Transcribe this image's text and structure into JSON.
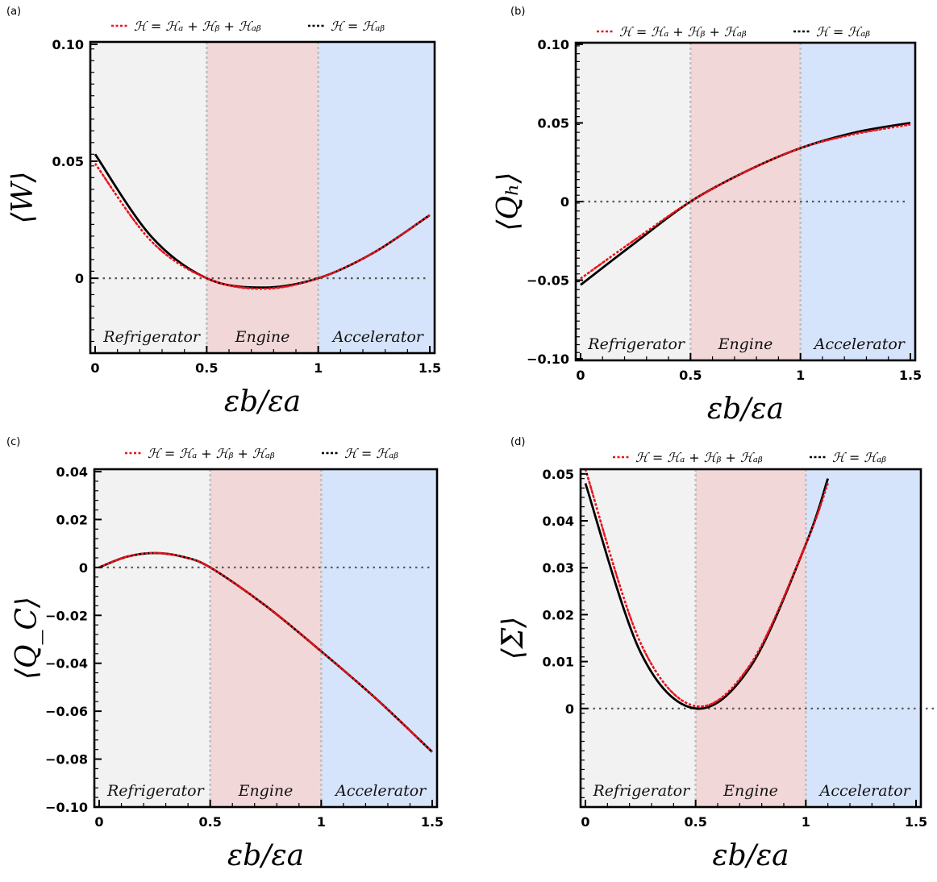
{
  "colors": {
    "refrigerator": "#f2f2f2",
    "engine": "#f2d7d9",
    "accelerator": "#d6e4fb",
    "full_hamiltonian": "#e8141c",
    "interaction_only": "#000000",
    "zero_line": "#555555",
    "boundary": "#bfbfbf"
  },
  "legend": {
    "full": "ℋ = ℋₐ + ℋᵦ + ℋₐᵦ",
    "interaction": "ℋ = ℋₐᵦ"
  },
  "regions": [
    {
      "name": "Refrigerator",
      "from": 0,
      "to": 0.5
    },
    {
      "name": "Engine",
      "from": 0.5,
      "to": 1.0
    },
    {
      "name": "Accelerator",
      "from": 1.0,
      "to": 1.5
    }
  ],
  "xlabel": "εb/εa",
  "chart_data": [
    {
      "type": "line",
      "panel": "(a)",
      "ylabel": "⟨W⟩",
      "xlim": [
        0,
        1.5
      ],
      "ylim": [
        -0.032,
        0.101
      ],
      "xticks": [
        {
          "v": 0,
          "t": "0"
        },
        {
          "v": 0.5,
          "t": "0.5"
        },
        {
          "v": 1,
          "t": "1"
        },
        {
          "v": 1.5,
          "t": "1.5"
        }
      ],
      "yticks": [
        {
          "v": 0,
          "t": "0"
        },
        {
          "v": 0.05,
          "t": "0.05"
        },
        {
          "v": 0.1,
          "t": "0.10"
        }
      ],
      "x": [
        0,
        0.25,
        0.5,
        0.75,
        1.0,
        1.25,
        1.5
      ],
      "series": [
        {
          "name": "full",
          "values": [
            0.049,
            0.016,
            0.0,
            -0.0045,
            0.0,
            0.011,
            0.027
          ]
        },
        {
          "name": "interaction",
          "values": [
            0.053,
            0.018,
            0.0,
            -0.004,
            0.0,
            0.011,
            0.027
          ]
        }
      ]
    },
    {
      "type": "line",
      "panel": "(b)",
      "ylabel": "⟨Qₕ⟩",
      "xlim": [
        0,
        1.5
      ],
      "ylim": [
        -0.101,
        0.101
      ],
      "xticks": [
        {
          "v": 0,
          "t": "0"
        },
        {
          "v": 0.5,
          "t": "0.5"
        },
        {
          "v": 1,
          "t": "1"
        },
        {
          "v": 1.5,
          "t": "1.5"
        }
      ],
      "yticks": [
        {
          "v": -0.1,
          "t": "−0.10"
        },
        {
          "v": -0.05,
          "t": "−0.05"
        },
        {
          "v": 0,
          "t": "0"
        },
        {
          "v": 0.05,
          "t": "0.05"
        },
        {
          "v": 0.1,
          "t": "0.10"
        }
      ],
      "x": [
        0,
        0.25,
        0.5,
        0.75,
        1.0,
        1.25,
        1.5
      ],
      "series": [
        {
          "name": "full",
          "values": [
            -0.049,
            -0.024,
            0.0,
            0.019,
            0.034,
            0.043,
            0.049
          ]
        },
        {
          "name": "interaction",
          "values": [
            -0.053,
            -0.026,
            0.0,
            0.019,
            0.034,
            0.044,
            0.05
          ]
        }
      ]
    },
    {
      "type": "line",
      "panel": "(c)",
      "ylabel": "⟨Q_C⟩",
      "xlim": [
        0,
        1.5
      ],
      "ylim": [
        -0.1,
        0.041
      ],
      "xticks": [
        {
          "v": 0,
          "t": "0"
        },
        {
          "v": 0.5,
          "t": "0.5"
        },
        {
          "v": 1,
          "t": "1"
        },
        {
          "v": 1.5,
          "t": "1.5"
        }
      ],
      "yticks": [
        {
          "v": -0.1,
          "t": "−0.10"
        },
        {
          "v": -0.08,
          "t": "−0.08"
        },
        {
          "v": -0.06,
          "t": "−0.06"
        },
        {
          "v": -0.04,
          "t": "−0.04"
        },
        {
          "v": -0.02,
          "t": "−0.02"
        },
        {
          "v": 0,
          "t": "0"
        },
        {
          "v": 0.02,
          "t": "0.02"
        },
        {
          "v": 0.04,
          "t": "0.04"
        }
      ],
      "x": [
        0,
        0.125,
        0.25,
        0.375,
        0.5,
        0.75,
        1.0,
        1.25,
        1.5
      ],
      "series": [
        {
          "name": "full",
          "values": [
            0.0,
            0.0045,
            0.006,
            0.0045,
            0.0,
            -0.016,
            -0.035,
            -0.055,
            -0.077
          ]
        },
        {
          "name": "interaction",
          "values": [
            0.0,
            0.0045,
            0.006,
            0.0045,
            0.0,
            -0.016,
            -0.035,
            -0.055,
            -0.077
          ]
        }
      ]
    },
    {
      "type": "line",
      "panel": "(d)",
      "ylabel": "⟨Σ⟩",
      "xlim": [
        0,
        1.5
      ],
      "ylim": [
        -0.021,
        0.051
      ],
      "xticks": [
        {
          "v": 0,
          "t": "0"
        },
        {
          "v": 0.5,
          "t": "0.5"
        },
        {
          "v": 1,
          "t": "1"
        },
        {
          "v": 1.5,
          "t": "1.5"
        }
      ],
      "yticks": [
        {
          "v": 0,
          "t": "0"
        },
        {
          "v": 0.01,
          "t": "0.01"
        },
        {
          "v": 0.02,
          "t": "0.02"
        },
        {
          "v": 0.03,
          "t": "0.03"
        },
        {
          "v": 0.04,
          "t": "0.04"
        },
        {
          "v": 0.05,
          "t": "0.05"
        }
      ],
      "x": [
        0,
        0.25,
        0.5,
        0.75,
        1.0,
        1.1
      ],
      "series": [
        {
          "name": "full",
          "values": [
            0.051,
            0.014,
            0.0005,
            0.0095,
            0.035,
            0.048
          ]
        },
        {
          "name": "interaction",
          "values": [
            0.048,
            0.012,
            0.0,
            0.009,
            0.035,
            0.049
          ]
        }
      ]
    }
  ]
}
